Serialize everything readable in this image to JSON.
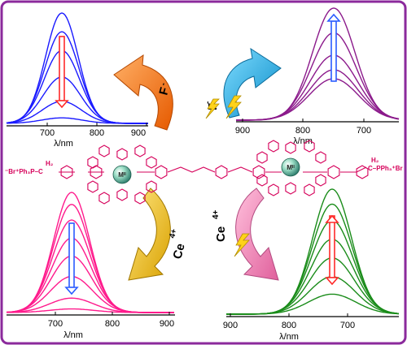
{
  "panels": [
    {
      "id": "top-left",
      "color": "#1a1aff",
      "x_ticks": [
        "700",
        "800",
        "900"
      ],
      "xlabel": "λ/nm",
      "arrow_direction": "down",
      "arrow_color": "#ff2a2a",
      "peak_heights": [
        1.0,
        0.83,
        0.66,
        0.42,
        0.2,
        0.05
      ]
    },
    {
      "id": "top-right",
      "color": "#8b1a8b",
      "x_ticks": [
        "900",
        "800",
        "700"
      ],
      "xlabel": "λ/nm",
      "arrow_direction": "up",
      "arrow_color": "#2a5cff",
      "peak_heights": [
        1.0,
        0.78,
        0.58,
        0.45,
        0.37
      ]
    },
    {
      "id": "bottom-left",
      "color": "#ff1a8c",
      "x_ticks": [
        "700",
        "800",
        "900"
      ],
      "xlabel": "λ/nm",
      "arrow_direction": "down",
      "arrow_color": "#2a5cff",
      "peak_heights": [
        1.0,
        0.9,
        0.77,
        0.62,
        0.47,
        0.3,
        0.12,
        0.03
      ]
    },
    {
      "id": "bottom-right",
      "color": "#1a8c1a",
      "x_ticks": [
        "900",
        "800",
        "700"
      ],
      "xlabel": "λ/nm",
      "arrow_direction": "down",
      "arrow_color": "#ff2a2a",
      "peak_heights": [
        1.0,
        0.88,
        0.75,
        0.6,
        0.45,
        0.3,
        0.16
      ]
    }
  ],
  "reagents": {
    "fluoride_left": "F",
    "fluoride_left_sup": "-",
    "fluoride_right": "F",
    "fluoride_right_sup": "-",
    "cerium_left": "Ce",
    "cerium_left_sup": "4+",
    "cerium_right": "Ce",
    "cerium_right_sup": "4+"
  },
  "molecule": {
    "left_end": "⁻Br⁺Ph₃P–C",
    "left_h2": "H₂",
    "right_end": "C–PPh₃⁺Br",
    "right_h2": "H₂",
    "metal_left": "Mᴵᴵ",
    "metal_right": "Mᴵᴵ"
  },
  "colors": {
    "frame": "#8b2a9c",
    "molecule": "#d6005a",
    "arrow_orange": "#ff7a1a",
    "arrow_cyan": "#1ab4e6",
    "arrow_yellow": "#f2c21a",
    "arrow_pink": "#f07ab4",
    "lightning": "#ffd21a"
  }
}
